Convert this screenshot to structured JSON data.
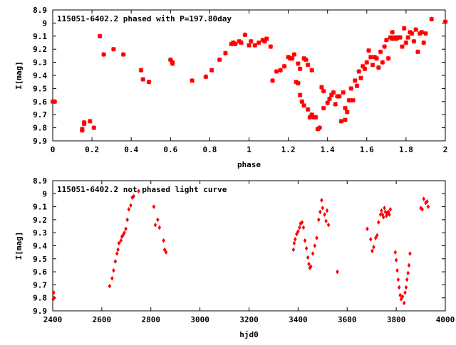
{
  "chart_data": [
    {
      "type": "scatter",
      "title": "115051-6402.2 phased with P=197.80day",
      "xlabel": "phase",
      "ylabel": "I[mag]",
      "xlim": [
        0,
        2
      ],
      "ylim": [
        9.9,
        8.9
      ],
      "y_inverted": true,
      "x_ticks": [
        "0",
        "0.2",
        "0.4",
        "0.6",
        "0.8",
        "1",
        "1.2",
        "1.4",
        "1.6",
        "1.8",
        "2"
      ],
      "y_ticks": [
        "8.9",
        "9",
        "9.1",
        "9.2",
        "9.3",
        "9.4",
        "9.5",
        "9.6",
        "9.7",
        "9.8",
        "9.9"
      ],
      "grid": false,
      "marker_color": "#ff0000",
      "marker": "cross",
      "points": [
        [
          0.0,
          9.6
        ],
        [
          0.01,
          9.6
        ],
        [
          0.15,
          9.82
        ],
        [
          0.15,
          9.81
        ],
        [
          0.16,
          9.77
        ],
        [
          0.16,
          9.76
        ],
        [
          0.19,
          9.75
        ],
        [
          0.21,
          9.8
        ],
        [
          0.24,
          9.1
        ],
        [
          0.26,
          9.24
        ],
        [
          0.31,
          9.2
        ],
        [
          0.36,
          9.24
        ],
        [
          0.45,
          9.36
        ],
        [
          0.46,
          9.43
        ],
        [
          0.49,
          9.45
        ],
        [
          0.6,
          9.28
        ],
        [
          0.61,
          9.3
        ],
        [
          0.61,
          9.31
        ],
        [
          0.71,
          9.44
        ],
        [
          0.78,
          9.41
        ],
        [
          0.81,
          9.36
        ],
        [
          0.85,
          9.28
        ],
        [
          0.88,
          9.23
        ],
        [
          0.91,
          9.16
        ],
        [
          0.92,
          9.15
        ],
        [
          0.93,
          9.16
        ],
        [
          0.95,
          9.14
        ],
        [
          0.96,
          9.15
        ],
        [
          0.98,
          9.09
        ],
        [
          1.0,
          9.17
        ],
        [
          1.01,
          9.14
        ],
        [
          1.03,
          9.17
        ],
        [
          1.05,
          9.15
        ],
        [
          1.07,
          9.13
        ],
        [
          1.08,
          9.14
        ],
        [
          1.09,
          9.12
        ],
        [
          1.11,
          9.18
        ],
        [
          1.12,
          9.44
        ],
        [
          1.14,
          9.37
        ],
        [
          1.16,
          9.36
        ],
        [
          1.18,
          9.33
        ],
        [
          1.2,
          9.26
        ],
        [
          1.21,
          9.27
        ],
        [
          1.22,
          9.27
        ],
        [
          1.23,
          9.24
        ],
        [
          1.24,
          9.45
        ],
        [
          1.25,
          9.46
        ],
        [
          1.25,
          9.31
        ],
        [
          1.26,
          9.35
        ],
        [
          1.26,
          9.55
        ],
        [
          1.27,
          9.6
        ],
        [
          1.28,
          9.63
        ],
        [
          1.28,
          9.27
        ],
        [
          1.29,
          9.28
        ],
        [
          1.3,
          9.66
        ],
        [
          1.3,
          9.32
        ],
        [
          1.31,
          9.72
        ],
        [
          1.32,
          9.36
        ],
        [
          1.32,
          9.7
        ],
        [
          1.33,
          9.72
        ],
        [
          1.34,
          9.72
        ],
        [
          1.35,
          9.81
        ],
        [
          1.36,
          9.8
        ],
        [
          1.37,
          9.49
        ],
        [
          1.38,
          9.52
        ],
        [
          1.38,
          9.65
        ],
        [
          1.4,
          9.61
        ],
        [
          1.41,
          9.58
        ],
        [
          1.42,
          9.55
        ],
        [
          1.43,
          9.53
        ],
        [
          1.44,
          9.62
        ],
        [
          1.45,
          9.56
        ],
        [
          1.46,
          9.56
        ],
        [
          1.47,
          9.75
        ],
        [
          1.48,
          9.53
        ],
        [
          1.49,
          9.74
        ],
        [
          1.49,
          9.65
        ],
        [
          1.5,
          9.68
        ],
        [
          1.51,
          9.59
        ],
        [
          1.52,
          9.5
        ],
        [
          1.53,
          9.59
        ],
        [
          1.54,
          9.44
        ],
        [
          1.55,
          9.48
        ],
        [
          1.56,
          9.37
        ],
        [
          1.57,
          9.42
        ],
        [
          1.58,
          9.33
        ],
        [
          1.59,
          9.35
        ],
        [
          1.6,
          9.3
        ],
        [
          1.61,
          9.21
        ],
        [
          1.62,
          9.26
        ],
        [
          1.63,
          9.32
        ],
        [
          1.64,
          9.26
        ],
        [
          1.65,
          9.27
        ],
        [
          1.66,
          9.34
        ],
        [
          1.67,
          9.22
        ],
        [
          1.68,
          9.3
        ],
        [
          1.69,
          9.18
        ],
        [
          1.7,
          9.13
        ],
        [
          1.71,
          9.27
        ],
        [
          1.72,
          9.11
        ],
        [
          1.73,
          9.12
        ],
        [
          1.73,
          9.07
        ],
        [
          1.74,
          9.11
        ],
        [
          1.75,
          9.12
        ],
        [
          1.76,
          9.11
        ],
        [
          1.77,
          9.11
        ],
        [
          1.78,
          9.18
        ],
        [
          1.79,
          9.04
        ],
        [
          1.8,
          9.15
        ],
        [
          1.81,
          9.11
        ],
        [
          1.82,
          9.07
        ],
        [
          1.83,
          9.08
        ],
        [
          1.84,
          9.14
        ],
        [
          1.85,
          9.05
        ],
        [
          1.86,
          9.22
        ],
        [
          1.87,
          9.08
        ],
        [
          1.88,
          9.07
        ],
        [
          1.89,
          9.15
        ],
        [
          1.9,
          9.08
        ],
        [
          1.93,
          8.97
        ],
        [
          2.0,
          8.99
        ]
      ]
    },
    {
      "type": "scatter",
      "title": "115051-6402.2 not phased light curve",
      "xlabel": "hjd0",
      "ylabel": "I[mag]",
      "xlim": [
        2400,
        4000
      ],
      "ylim": [
        9.9,
        8.9
      ],
      "y_inverted": true,
      "x_ticks": [
        "2400",
        "2600",
        "2800",
        "3000",
        "3200",
        "3400",
        "3600",
        "3800",
        "4000"
      ],
      "y_ticks": [
        "8.9",
        "9",
        "9.1",
        "9.2",
        "9.3",
        "9.4",
        "9.5",
        "9.6",
        "9.7",
        "9.8",
        "9.9"
      ],
      "grid": false,
      "marker_color": "#ff0000",
      "marker": "diamond",
      "points": [
        [
          2402,
          9.81
        ],
        [
          2404,
          9.76
        ],
        [
          2406,
          9.8
        ],
        [
          2632,
          9.71
        ],
        [
          2642,
          9.65
        ],
        [
          2648,
          9.59
        ],
        [
          2655,
          9.52
        ],
        [
          2662,
          9.46
        ],
        [
          2666,
          9.43
        ],
        [
          2670,
          9.38
        ],
        [
          2678,
          9.36
        ],
        [
          2682,
          9.33
        ],
        [
          2686,
          9.32
        ],
        [
          2692,
          9.3
        ],
        [
          2698,
          9.27
        ],
        [
          2704,
          9.2
        ],
        [
          2710,
          9.12
        ],
        [
          2718,
          9.09
        ],
        [
          2724,
          9.03
        ],
        [
          2730,
          9.02
        ],
        [
          2750,
          8.98
        ],
        [
          2812,
          9.1
        ],
        [
          2818,
          9.24
        ],
        [
          2828,
          9.2
        ],
        [
          2835,
          9.26
        ],
        [
          2852,
          9.36
        ],
        [
          2856,
          9.43
        ],
        [
          2862,
          9.45
        ],
        [
          3381,
          9.43
        ],
        [
          3384,
          9.38
        ],
        [
          3388,
          9.35
        ],
        [
          3394,
          9.31
        ],
        [
          3400,
          9.29
        ],
        [
          3406,
          9.26
        ],
        [
          3410,
          9.23
        ],
        [
          3416,
          9.22
        ],
        [
          3422,
          9.26
        ],
        [
          3428,
          9.36
        ],
        [
          3434,
          9.42
        ],
        [
          3440,
          9.49
        ],
        [
          3444,
          9.54
        ],
        [
          3448,
          9.57
        ],
        [
          3452,
          9.56
        ],
        [
          3460,
          9.46
        ],
        [
          3468,
          9.4
        ],
        [
          3476,
          9.34
        ],
        [
          3484,
          9.2
        ],
        [
          3490,
          9.14
        ],
        [
          3496,
          9.05
        ],
        [
          3500,
          9.11
        ],
        [
          3508,
          9.16
        ],
        [
          3514,
          9.21
        ],
        [
          3518,
          9.13
        ],
        [
          3524,
          9.24
        ],
        [
          3560,
          9.6
        ],
        [
          3682,
          9.27
        ],
        [
          3696,
          9.35
        ],
        [
          3702,
          9.44
        ],
        [
          3708,
          9.41
        ],
        [
          3716,
          9.34
        ],
        [
          3722,
          9.32
        ],
        [
          3728,
          9.22
        ],
        [
          3736,
          9.16
        ],
        [
          3740,
          9.13
        ],
        [
          3744,
          9.16
        ],
        [
          3748,
          9.18
        ],
        [
          3752,
          9.11
        ],
        [
          3756,
          9.14
        ],
        [
          3760,
          9.17
        ],
        [
          3764,
          9.15
        ],
        [
          3768,
          9.14
        ],
        [
          3772,
          9.16
        ],
        [
          3776,
          9.12
        ],
        [
          3796,
          9.45
        ],
        [
          3800,
          9.51
        ],
        [
          3804,
          9.59
        ],
        [
          3808,
          9.66
        ],
        [
          3812,
          9.72
        ],
        [
          3816,
          9.78
        ],
        [
          3820,
          9.81
        ],
        [
          3826,
          9.79
        ],
        [
          3832,
          9.84
        ],
        [
          3836,
          9.76
        ],
        [
          3840,
          9.72
        ],
        [
          3844,
          9.66
        ],
        [
          3848,
          9.61
        ],
        [
          3852,
          9.55
        ],
        [
          3856,
          9.46
        ],
        [
          3900,
          9.11
        ],
        [
          3906,
          9.12
        ],
        [
          3912,
          9.04
        ],
        [
          3920,
          9.07
        ],
        [
          3926,
          9.06
        ],
        [
          3930,
          9.1
        ]
      ]
    }
  ]
}
